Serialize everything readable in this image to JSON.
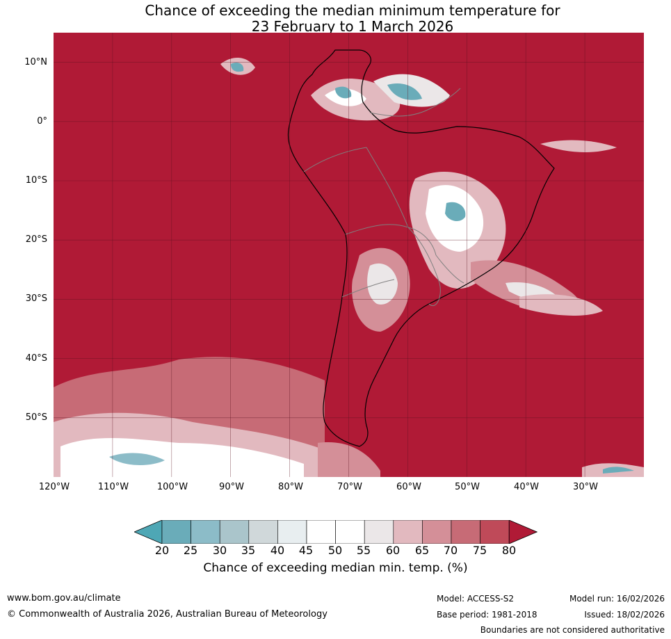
{
  "title_line1": "Chance of exceeding the median minimum temperature for",
  "title_line2": "23 February to 1 March 2026",
  "map": {
    "extent": {
      "lon_min": -120,
      "lon_max": -20,
      "lat_min": -60,
      "lat_max": 15
    },
    "lat_labels": [
      "10°N",
      "0°",
      "10°S",
      "20°S",
      "30°S",
      "40°S",
      "50°S"
    ],
    "lon_labels": [
      "120°W",
      "110°W",
      "100°W",
      "90°W",
      "80°W",
      "70°W",
      "60°W",
      "50°W",
      "40°W",
      "30°W"
    ],
    "background_color": "#b01a36",
    "grid": true
  },
  "colorbar": {
    "ticks": [
      "20",
      "25",
      "30",
      "35",
      "40",
      "45",
      "50",
      "55",
      "60",
      "65",
      "70",
      "75",
      "80"
    ],
    "colors": [
      "#4ea7b5",
      "#6aacb9",
      "#8cbcc8",
      "#aac5cb",
      "#d0d8da",
      "#e8eef0",
      "#ffffff",
      "#ffffff",
      "#ebe7e8",
      "#e2b9bf",
      "#d48f98",
      "#c76b76",
      "#bf4a59",
      "#b01a36"
    ],
    "label": "Chance of exceeding median min. temp. (%)"
  },
  "footer": {
    "website": "www.bom.gov.au/climate",
    "copyright": "© Commonwealth of Australia 2026, Australian Bureau of Meteorology",
    "model": "Model: ACCESS-S2",
    "base_period": "Base period: 1981-2018",
    "model_run": "Model run: 16/02/2026",
    "issued": "Issued: 18/02/2026",
    "disclaimer": "Boundaries are not considered authoritative"
  }
}
